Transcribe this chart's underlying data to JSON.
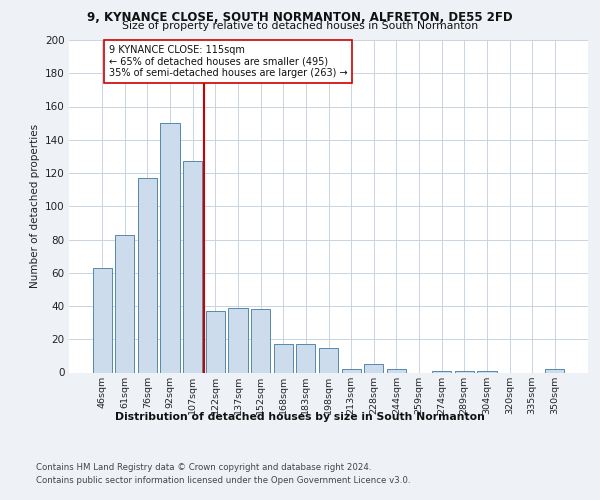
{
  "title1": "9, KYNANCE CLOSE, SOUTH NORMANTON, ALFRETON, DE55 2FD",
  "title2": "Size of property relative to detached houses in South Normanton",
  "xlabel": "Distribution of detached houses by size in South Normanton",
  "ylabel": "Number of detached properties",
  "categories": [
    "46sqm",
    "61sqm",
    "76sqm",
    "92sqm",
    "107sqm",
    "122sqm",
    "137sqm",
    "152sqm",
    "168sqm",
    "183sqm",
    "198sqm",
    "213sqm",
    "228sqm",
    "244sqm",
    "259sqm",
    "274sqm",
    "289sqm",
    "304sqm",
    "320sqm",
    "335sqm",
    "350sqm"
  ],
  "values": [
    63,
    83,
    117,
    150,
    127,
    37,
    39,
    38,
    17,
    17,
    15,
    2,
    5,
    2,
    0,
    1,
    1,
    1,
    0,
    0,
    2
  ],
  "bar_color": "#ccdcec",
  "bar_edge_color": "#5588aa",
  "vline_x": 4.5,
  "vline_color": "#cc0000",
  "annotation_text": "9 KYNANCE CLOSE: 115sqm\n← 65% of detached houses are smaller (495)\n35% of semi-detached houses are larger (263) →",
  "annotation_box_color": "#ffffff",
  "annotation_box_edge": "#cc0000",
  "ylim": [
    0,
    200
  ],
  "yticks": [
    0,
    20,
    40,
    60,
    80,
    100,
    120,
    140,
    160,
    180,
    200
  ],
  "footer1": "Contains HM Land Registry data © Crown copyright and database right 2024.",
  "footer2": "Contains public sector information licensed under the Open Government Licence v3.0.",
  "bg_color": "#eef2f7",
  "plot_bg_color": "#ffffff",
  "grid_color": "#c8d4e0"
}
